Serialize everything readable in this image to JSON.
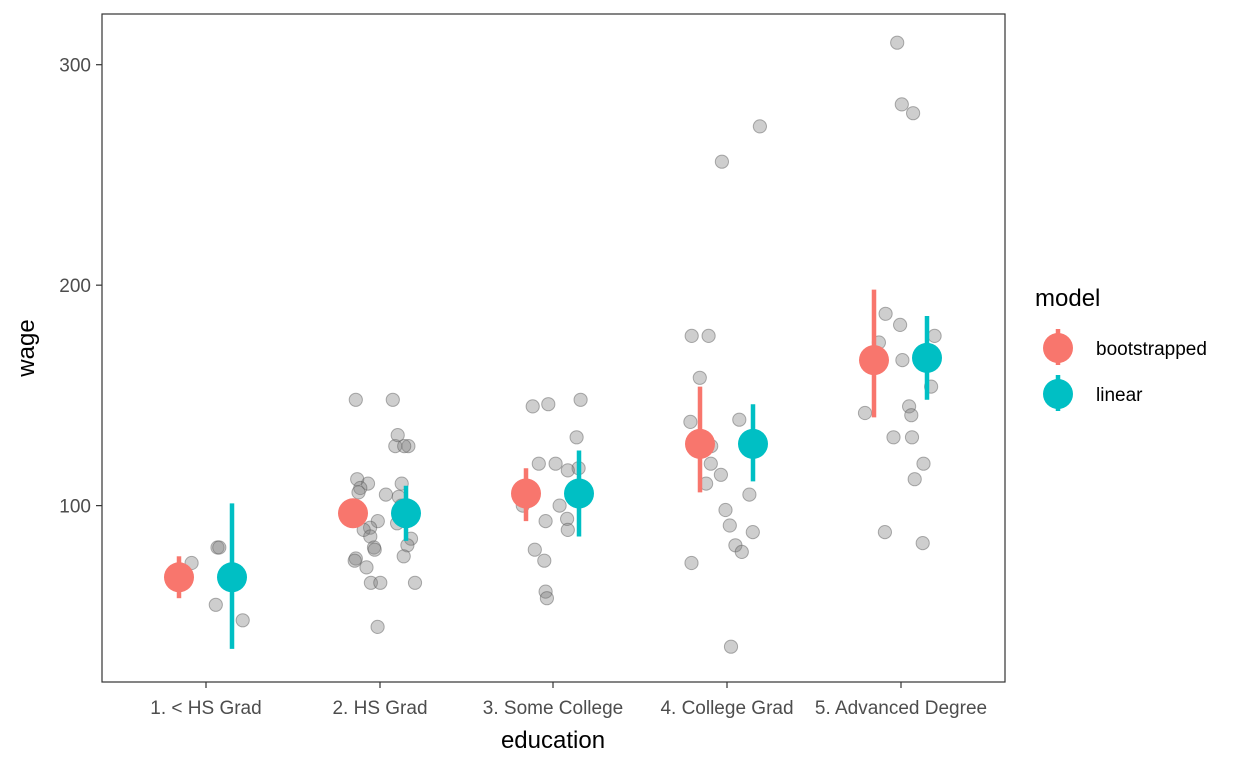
{
  "chart_data": {
    "type": "scatter",
    "xlabel": "education",
    "ylabel": "wage",
    "categories": [
      "1. < HS Grad",
      "2. HS Grad",
      "3. Some College",
      "4. College Grad",
      "5. Advanced Degree"
    ],
    "ylim": [
      20,
      323
    ],
    "yticks": [
      100,
      200,
      300
    ],
    "grid": false,
    "legend": {
      "title": "model",
      "position": "right",
      "entries": [
        {
          "name": "bootstrapped",
          "color": "#F8766D"
        },
        {
          "name": "linear",
          "color": "#00BFC4"
        }
      ]
    },
    "raw_points": {
      "color": "#7f7f7f",
      "values": [
        [
          81,
          74,
          55,
          48,
          81
        ],
        [
          148,
          148,
          127,
          127,
          127,
          132,
          110,
          110,
          112,
          105,
          108,
          106,
          100,
          99,
          96,
          94,
          93,
          92,
          90,
          89,
          86,
          85,
          82,
          81,
          80,
          77,
          76,
          75,
          72,
          65,
          65,
          65,
          45,
          104
        ],
        [
          145,
          146,
          148,
          131,
          119,
          119,
          117,
          116,
          105,
          100,
          100,
          94,
          93,
          89,
          80,
          75,
          61,
          58
        ],
        [
          272,
          256,
          177,
          177,
          158,
          139,
          138,
          127,
          119,
          114,
          110,
          105,
          98,
          91,
          88,
          82,
          79,
          74,
          36
        ],
        [
          310,
          282,
          278,
          187,
          182,
          177,
          174,
          166,
          154,
          145,
          142,
          141,
          131,
          131,
          119,
          112,
          88,
          83
        ]
      ]
    },
    "series": [
      {
        "name": "bootstrapped",
        "color": "#F8766D",
        "mean": [
          67.5,
          96.5,
          105.5,
          128,
          166
        ],
        "lower": [
          58,
          91,
          93,
          106,
          140
        ],
        "upper": [
          77,
          102,
          117,
          154,
          198
        ]
      },
      {
        "name": "linear",
        "color": "#00BFC4",
        "mean": [
          67.5,
          96.5,
          105.5,
          128,
          167
        ],
        "lower": [
          35,
          84,
          86,
          111,
          148
        ],
        "upper": [
          101,
          109,
          125,
          146,
          186
        ]
      }
    ]
  }
}
